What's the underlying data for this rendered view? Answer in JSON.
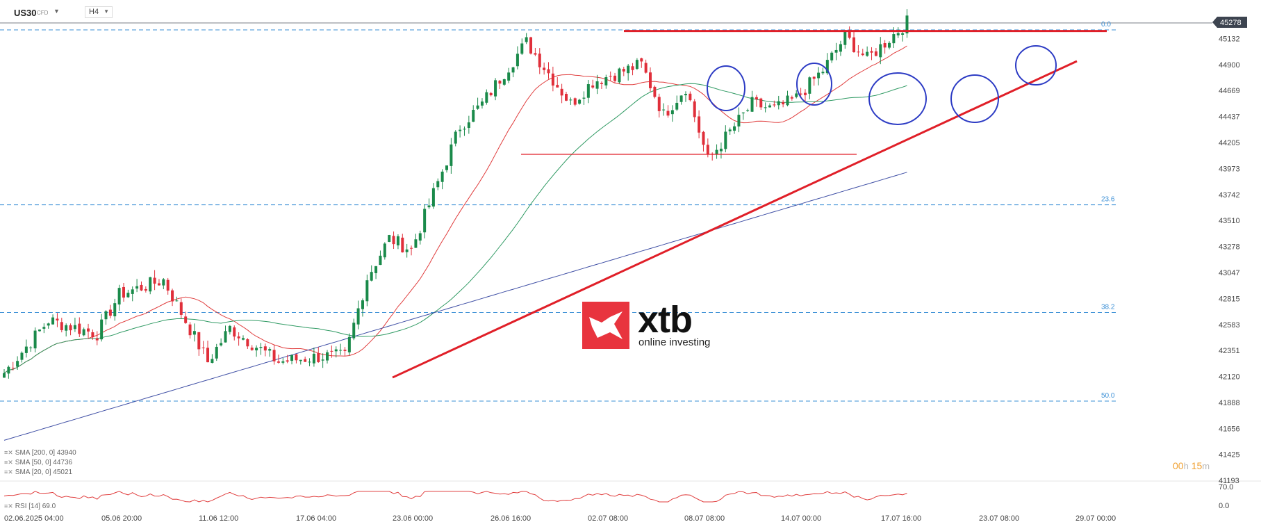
{
  "header": {
    "symbol": "US30",
    "symbol_type": "CFD",
    "timeframe": "H4"
  },
  "timer": {
    "hours": "00",
    "h_unit": "h",
    "minutes": "15",
    "m_unit": "m"
  },
  "brand": {
    "word": "xtb",
    "tagline": "online investing"
  },
  "indicators": [
    "SMA [200, 0] 43940",
    "SMA [50, 0] 44736",
    "SMA [20, 0] 45021"
  ],
  "rsi_label": "RSI [14] 69.0",
  "colors": {
    "up": "#1a8a4a",
    "down": "#e02f3a",
    "sma20": "#e03c3c",
    "sma50": "#2f9a63",
    "sma200": "#3f4fa5",
    "fib": "#3a8fd6",
    "annot_red": "#e01f28",
    "annot_blue": "#2c3bc4",
    "price_tag": "#3d4450"
  },
  "chart_data": {
    "type": "candlestick",
    "instrument": "US30",
    "timeframe": "H4",
    "current_price": 45278,
    "ylim": [
      41193,
      45278
    ],
    "y_ticks": [
      45132,
      44900,
      44669,
      44437,
      44205,
      43973,
      43742,
      43510,
      43278,
      43047,
      42815,
      42583,
      42351,
      42120,
      41888,
      41656,
      41425,
      41193
    ],
    "x_ticks": [
      "02.06.2025  04:00",
      "05.06  20:00",
      "11.06  12:00",
      "17.06  04:00",
      "23.06  00:00",
      "26.06  16:00",
      "02.07  08:00",
      "08.07  08:00",
      "14.07  00:00",
      "17.07  16:00",
      "23.07  08:00",
      "29.07  00:00"
    ],
    "fibonacci": [
      {
        "label": "0.0",
        "value": 45210
      },
      {
        "label": "23.6",
        "value": 43650
      },
      {
        "label": "38.2",
        "value": 42690
      },
      {
        "label": "50.0",
        "value": 41900
      }
    ],
    "price_key_points": [
      {
        "date": "02.06",
        "close": 42150
      },
      {
        "date": "04.06",
        "close": 42620
      },
      {
        "date": "06.06",
        "close": 42500
      },
      {
        "date": "09.06",
        "close": 42850
      },
      {
        "date": "11.06",
        "close": 42980
      },
      {
        "date": "13.06",
        "close": 42250
      },
      {
        "date": "16.06",
        "close": 42550
      },
      {
        "date": "18.06",
        "close": 42250
      },
      {
        "date": "20.06",
        "close": 42300
      },
      {
        "date": "23.06",
        "close": 42300
      },
      {
        "date": "24.06",
        "close": 43000
      },
      {
        "date": "25.06",
        "close": 43350
      },
      {
        "date": "26.06",
        "close": 43250
      },
      {
        "date": "27.06",
        "close": 43750
      },
      {
        "date": "30.06",
        "close": 44350
      },
      {
        "date": "01.07",
        "close": 44550
      },
      {
        "date": "02.07",
        "close": 44830
      },
      {
        "date": "03.07",
        "close": 45100
      },
      {
        "date": "07.07",
        "close": 44550
      },
      {
        "date": "08.07",
        "close": 44750
      },
      {
        "date": "10.07",
        "close": 44900
      },
      {
        "date": "11.07",
        "close": 44450
      },
      {
        "date": "14.07",
        "close": 44700
      },
      {
        "date": "15.07",
        "close": 44050
      },
      {
        "date": "17.07",
        "close": 44550
      },
      {
        "date": "18.07",
        "close": 44500
      },
      {
        "date": "21.07",
        "close": 44600
      },
      {
        "date": "22.07",
        "close": 44850
      },
      {
        "date": "23.07",
        "close": 45150
      },
      {
        "date": "24.07",
        "close": 44950
      },
      {
        "date": "25.07",
        "close": 45278
      }
    ],
    "sma": [
      {
        "name": "SMA [200, 0] 43940",
        "last": 43940
      },
      {
        "name": "SMA [50, 0] 44736",
        "last": 44736
      },
      {
        "name": "SMA [20, 0] 45021",
        "last": 45021
      }
    ],
    "annotations": {
      "resistance": 45200,
      "support": 44100,
      "trendline": [
        {
          "date": "23.06",
          "value": 42110
        },
        {
          "date": "25.07",
          "value": 44900
        }
      ],
      "circled_touches": [
        "09.07",
        "14.07",
        "18.07",
        "21.07",
        "24.07"
      ]
    },
    "rsi": {
      "period": 14,
      "value": 69.0,
      "levels": [
        70.0,
        0.0
      ],
      "level_labels": [
        "70.0",
        "0.0"
      ]
    }
  }
}
